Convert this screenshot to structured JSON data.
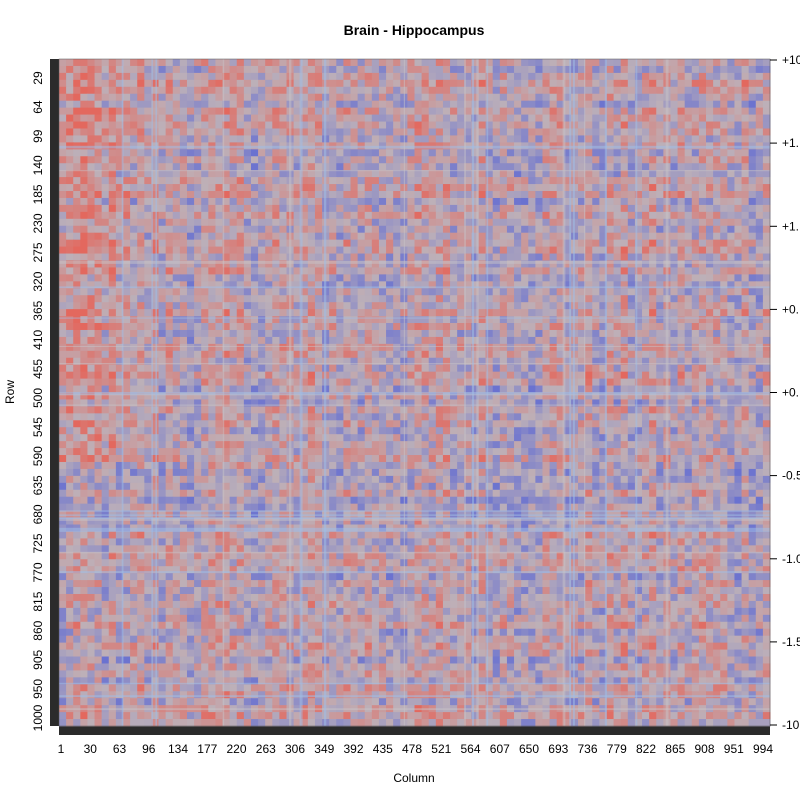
{
  "chart_data": {
    "type": "heatmap",
    "title": "Brain - Hippocampus",
    "xlabel": "Column",
    "ylabel": "Row",
    "x_ticks": [
      "1",
      "30",
      "63",
      "96",
      "134",
      "177",
      "220",
      "263",
      "306",
      "349",
      "392",
      "435",
      "478",
      "521",
      "564",
      "607",
      "650",
      "693",
      "736",
      "779",
      "822",
      "865",
      "908",
      "951",
      "994"
    ],
    "y_ticks": [
      "29",
      "64",
      "99",
      "140",
      "185",
      "230",
      "275",
      "320",
      "365",
      "410",
      "455",
      "500",
      "545",
      "590",
      "635",
      "680",
      "725",
      "770",
      "815",
      "860",
      "905",
      "950",
      "1000"
    ],
    "colorbar_ticks": [
      "+10",
      "+1.",
      "+1.",
      "+0.",
      "+0.",
      "-0.5",
      "-1.0",
      "-1.5",
      "-10"
    ],
    "n_rows": 1000,
    "n_cols": 1000,
    "grid": false,
    "legend": "right colorbar",
    "colors": {
      "low": "#6a72d0",
      "mid": "#bdb0b8",
      "high": "#e3685e",
      "sidebar": "#2b2b2b"
    }
  }
}
